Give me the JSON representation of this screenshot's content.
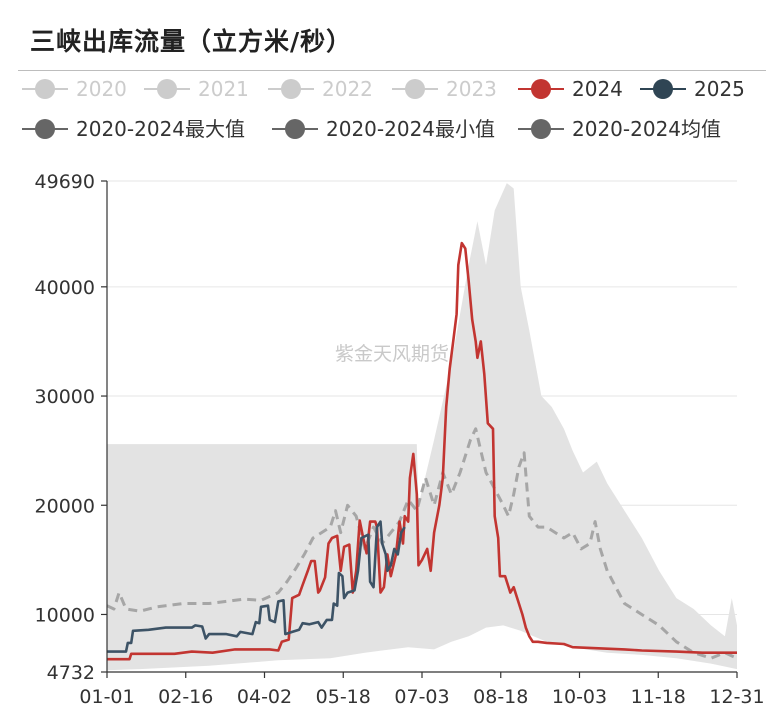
{
  "title": "三峡出库流量（立方米/秒）",
  "watermark": "紫金天风期货",
  "chart_data": {
    "type": "line",
    "title": "三峡出库流量（立方米/秒）",
    "xlabel": "",
    "ylabel": "",
    "x_ticks": [
      "01-01",
      "02-16",
      "04-02",
      "05-18",
      "07-03",
      "08-18",
      "10-03",
      "11-18",
      "12-31"
    ],
    "y_ticks": [
      4732,
      10000,
      20000,
      30000,
      40000,
      49690
    ],
    "ylim": [
      4732,
      49690
    ],
    "x_day_range": [
      1,
      365
    ],
    "grid": true,
    "legend_position": "top",
    "legend": [
      {
        "name": "2020",
        "color": "#cccccc",
        "visible": false
      },
      {
        "name": "2021",
        "color": "#cccccc",
        "visible": false
      },
      {
        "name": "2022",
        "color": "#cccccc",
        "visible": false
      },
      {
        "name": "2023",
        "color": "#cccccc",
        "visible": false
      },
      {
        "name": "2024",
        "color": "#c23531",
        "visible": true
      },
      {
        "name": "2025",
        "color": "#2f4554",
        "visible": true
      },
      {
        "name": "2020-2024最大值",
        "color": "#666666",
        "visible": true
      },
      {
        "name": "2020-2024最小值",
        "color": "#666666",
        "visible": true
      },
      {
        "name": "2020-2024均值",
        "color": "#666666",
        "visible": true
      }
    ],
    "band": {
      "color": "#e3e3e3",
      "max": [
        [
          1,
          25600
        ],
        [
          180,
          25600
        ],
        [
          181,
          20000
        ],
        [
          190,
          26000
        ],
        [
          200,
          33000
        ],
        [
          210,
          42000
        ],
        [
          215,
          46000
        ],
        [
          220,
          42000
        ],
        [
          225,
          47000
        ],
        [
          232,
          49500
        ],
        [
          236,
          49000
        ],
        [
          240,
          40000
        ],
        [
          245,
          36000
        ],
        [
          252,
          30000
        ],
        [
          258,
          29000
        ],
        [
          265,
          27000
        ],
        [
          270,
          25000
        ],
        [
          276,
          23000
        ],
        [
          284,
          24000
        ],
        [
          290,
          22000
        ],
        [
          300,
          19500
        ],
        [
          310,
          17000
        ],
        [
          320,
          14000
        ],
        [
          330,
          11500
        ],
        [
          340,
          10500
        ],
        [
          350,
          9000
        ],
        [
          358,
          8000
        ],
        [
          362,
          11500
        ],
        [
          365,
          9000
        ]
      ],
      "min": [
        [
          1,
          4900
        ],
        [
          20,
          5000
        ],
        [
          60,
          5300
        ],
        [
          100,
          5800
        ],
        [
          130,
          6000
        ],
        [
          150,
          6500
        ],
        [
          175,
          7000
        ],
        [
          190,
          6800
        ],
        [
          200,
          7500
        ],
        [
          210,
          8000
        ],
        [
          220,
          8800
        ],
        [
          230,
          9000
        ],
        [
          240,
          8500
        ],
        [
          255,
          7500
        ],
        [
          270,
          7000
        ],
        [
          290,
          6500
        ],
        [
          310,
          6300
        ],
        [
          330,
          6000
        ],
        [
          350,
          5500
        ],
        [
          365,
          5000
        ]
      ]
    },
    "series": [
      {
        "name": "2020-2024均值",
        "color": "#a6a6a6",
        "dashed": true,
        "points": [
          [
            1,
            10800
          ],
          [
            5,
            10500
          ],
          [
            8,
            12000
          ],
          [
            12,
            10500
          ],
          [
            20,
            10300
          ],
          [
            30,
            10700
          ],
          [
            45,
            11000
          ],
          [
            60,
            11000
          ],
          [
            70,
            11200
          ],
          [
            80,
            11400
          ],
          [
            90,
            11300
          ],
          [
            100,
            12000
          ],
          [
            105,
            13000
          ],
          [
            110,
            14200
          ],
          [
            115,
            15500
          ],
          [
            120,
            17000
          ],
          [
            125,
            17500
          ],
          [
            130,
            18000
          ],
          [
            133,
            19500
          ],
          [
            136,
            17500
          ],
          [
            140,
            20000
          ],
          [
            145,
            19000
          ],
          [
            150,
            16000
          ],
          [
            155,
            18000
          ],
          [
            160,
            16500
          ],
          [
            165,
            17500
          ],
          [
            170,
            18500
          ],
          [
            175,
            20500
          ],
          [
            180,
            19500
          ],
          [
            185,
            22500
          ],
          [
            190,
            20000
          ],
          [
            195,
            23000
          ],
          [
            200,
            21000
          ],
          [
            205,
            23000
          ],
          [
            208,
            24500
          ],
          [
            211,
            26000
          ],
          [
            214,
            27000
          ],
          [
            217,
            25000
          ],
          [
            220,
            23000
          ],
          [
            225,
            21500
          ],
          [
            230,
            20000
          ],
          [
            233,
            19000
          ],
          [
            236,
            21000
          ],
          [
            239,
            23500
          ],
          [
            242,
            24800
          ],
          [
            245,
            19000
          ],
          [
            250,
            18000
          ],
          [
            255,
            18000
          ],
          [
            260,
            17500
          ],
          [
            265,
            17000
          ],
          [
            270,
            17500
          ],
          [
            275,
            16000
          ],
          [
            280,
            16500
          ],
          [
            283,
            18500
          ],
          [
            286,
            16000
          ],
          [
            290,
            14000
          ],
          [
            295,
            12500
          ],
          [
            300,
            11000
          ],
          [
            305,
            10500
          ],
          [
            310,
            10000
          ],
          [
            320,
            9000
          ],
          [
            330,
            7500
          ],
          [
            340,
            6500
          ],
          [
            350,
            6000
          ],
          [
            358,
            6500
          ],
          [
            365,
            6000
          ]
        ]
      },
      {
        "name": "2024",
        "color": "#c23531",
        "dashed": false,
        "points": [
          [
            1,
            5900
          ],
          [
            14,
            5900
          ],
          [
            15,
            6400
          ],
          [
            40,
            6400
          ],
          [
            50,
            6600
          ],
          [
            62,
            6500
          ],
          [
            75,
            6800
          ],
          [
            95,
            6800
          ],
          [
            100,
            6700
          ],
          [
            102,
            7500
          ],
          [
            106,
            7700
          ],
          [
            108,
            11500
          ],
          [
            112,
            11800
          ],
          [
            114,
            12700
          ],
          [
            117,
            14000
          ],
          [
            119,
            14900
          ],
          [
            121,
            14900
          ],
          [
            123,
            12000
          ],
          [
            124,
            12200
          ],
          [
            127,
            13400
          ],
          [
            129,
            16500
          ],
          [
            131,
            17000
          ],
          [
            134,
            17200
          ],
          [
            136,
            14000
          ],
          [
            138,
            16200
          ],
          [
            141,
            16400
          ],
          [
            143,
            12000
          ],
          [
            145,
            14000
          ],
          [
            147,
            18600
          ],
          [
            149,
            17000
          ],
          [
            151,
            15600
          ],
          [
            153,
            18500
          ],
          [
            156,
            18500
          ],
          [
            157,
            18000
          ],
          [
            159,
            12000
          ],
          [
            161,
            12500
          ],
          [
            163,
            15500
          ],
          [
            165,
            13500
          ],
          [
            168,
            15500
          ],
          [
            170,
            18500
          ],
          [
            172,
            16500
          ],
          [
            173,
            19000
          ],
          [
            175,
            18500
          ],
          [
            176,
            22500
          ],
          [
            178,
            24700
          ],
          [
            180,
            21000
          ],
          [
            181,
            14500
          ],
          [
            183,
            15000
          ],
          [
            186,
            16000
          ],
          [
            188,
            14000
          ],
          [
            190,
            17500
          ],
          [
            193,
            20000
          ],
          [
            195,
            22500
          ],
          [
            197,
            29000
          ],
          [
            199,
            32500
          ],
          [
            201,
            35000
          ],
          [
            203,
            37500
          ],
          [
            204,
            42000
          ],
          [
            206,
            44000
          ],
          [
            208,
            43500
          ],
          [
            210,
            40500
          ],
          [
            212,
            37000
          ],
          [
            214,
            35000
          ],
          [
            215,
            33500
          ],
          [
            217,
            35000
          ],
          [
            219,
            32000
          ],
          [
            221,
            27500
          ],
          [
            224,
            27000
          ],
          [
            225,
            19000
          ],
          [
            227,
            17000
          ],
          [
            228,
            13500
          ],
          [
            231,
            13500
          ],
          [
            234,
            12000
          ],
          [
            236,
            12500
          ],
          [
            239,
            11000
          ],
          [
            241,
            10000
          ],
          [
            243,
            8800
          ],
          [
            245,
            8000
          ],
          [
            247,
            7500
          ],
          [
            250,
            7500
          ],
          [
            255,
            7400
          ],
          [
            265,
            7300
          ],
          [
            270,
            7000
          ],
          [
            285,
            6900
          ],
          [
            300,
            6800
          ],
          [
            310,
            6700
          ],
          [
            330,
            6600
          ],
          [
            345,
            6500
          ],
          [
            365,
            6500
          ]
        ]
      },
      {
        "name": "2025",
        "color": "#3d5366",
        "dashed": false,
        "points": [
          [
            1,
            6600
          ],
          [
            12,
            6600
          ],
          [
            13,
            7400
          ],
          [
            15,
            7400
          ],
          [
            16,
            8500
          ],
          [
            25,
            8600
          ],
          [
            35,
            8800
          ],
          [
            45,
            8800
          ],
          [
            50,
            8800
          ],
          [
            52,
            9000
          ],
          [
            56,
            8900
          ],
          [
            58,
            7800
          ],
          [
            60,
            8200
          ],
          [
            70,
            8200
          ],
          [
            76,
            8000
          ],
          [
            78,
            8400
          ],
          [
            85,
            8200
          ],
          [
            87,
            9300
          ],
          [
            89,
            9200
          ],
          [
            90,
            10700
          ],
          [
            94,
            10800
          ],
          [
            95,
            9500
          ],
          [
            98,
            9300
          ],
          [
            100,
            11200
          ],
          [
            103,
            11300
          ],
          [
            104,
            8200
          ],
          [
            108,
            8400
          ],
          [
            112,
            8600
          ],
          [
            114,
            9200
          ],
          [
            118,
            9100
          ],
          [
            123,
            9300
          ],
          [
            125,
            8800
          ],
          [
            128,
            9500
          ],
          [
            131,
            9500
          ],
          [
            132,
            11000
          ],
          [
            134,
            10800
          ],
          [
            135,
            13800
          ],
          [
            137,
            13500
          ],
          [
            138,
            11500
          ],
          [
            140,
            12000
          ],
          [
            144,
            12200
          ],
          [
            146,
            14000
          ],
          [
            148,
            17000
          ],
          [
            152,
            17300
          ],
          [
            153,
            13000
          ],
          [
            155,
            12500
          ],
          [
            157,
            18000
          ],
          [
            159,
            18500
          ],
          [
            160,
            16500
          ],
          [
            162,
            15500
          ],
          [
            163,
            14000
          ],
          [
            165,
            14500
          ],
          [
            167,
            16000
          ],
          [
            169,
            15500
          ],
          [
            171,
            17500
          ],
          [
            173,
            18000
          ]
        ]
      }
    ]
  }
}
